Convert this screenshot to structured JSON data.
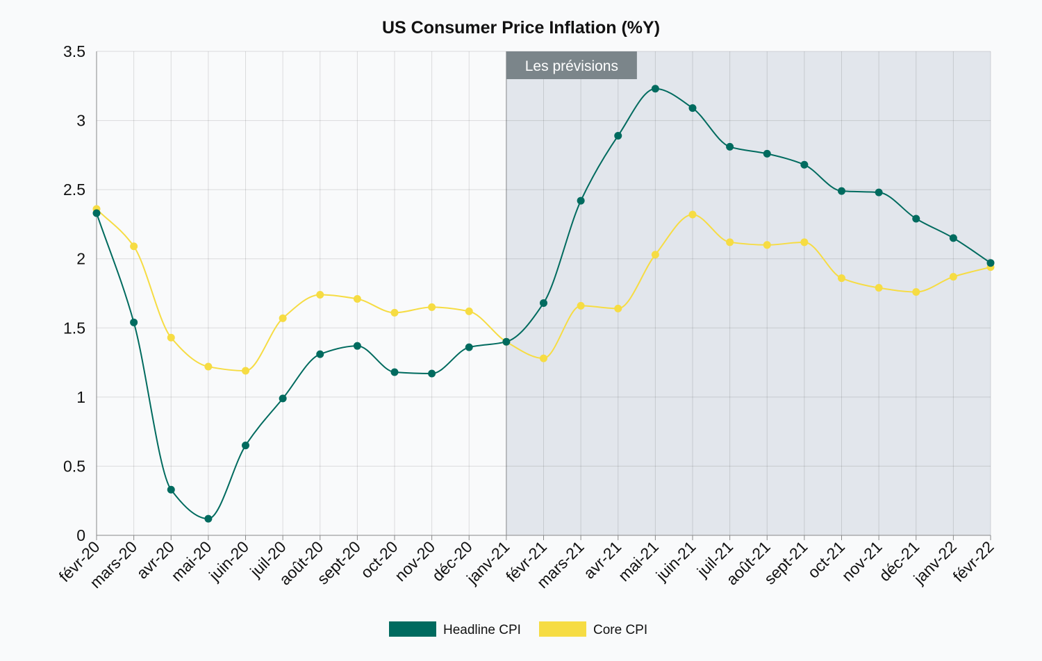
{
  "chart_data": {
    "type": "line",
    "title": "US Consumer Price Inflation (%Y)",
    "xlabel": "",
    "ylabel": "",
    "categories": [
      "févr-20",
      "mars-20",
      "avr-20",
      "mai-20",
      "juin-20",
      "juil-20",
      "août-20",
      "sept-20",
      "oct-20",
      "nov-20",
      "déc-20",
      "janv-21",
      "févr-21",
      "mars-21",
      "avr-21",
      "mai-21",
      "juin-21",
      "juil-21",
      "août-21",
      "sept-21",
      "oct-21",
      "nov-21",
      "déc-21",
      "janv-22",
      "févr-22"
    ],
    "ylim": [
      0,
      3.5
    ],
    "yticks": [
      "0",
      "0.5",
      "1",
      "1.5",
      "2",
      "2.5",
      "3",
      "3.5"
    ],
    "grid": true,
    "legend_position": "bottom",
    "series": [
      {
        "name": "Headline CPI",
        "color": "#006b5f",
        "values": [
          2.33,
          1.54,
          0.33,
          0.12,
          0.65,
          0.99,
          1.31,
          1.37,
          1.18,
          1.17,
          1.36,
          1.4,
          1.68,
          2.42,
          2.89,
          3.23,
          3.09,
          2.81,
          2.76,
          2.68,
          2.49,
          2.48,
          2.29,
          2.15,
          1.97
        ]
      },
      {
        "name": "Core CPI",
        "color": "#f6dc43",
        "values": [
          2.36,
          2.09,
          1.43,
          1.22,
          1.19,
          1.57,
          1.74,
          1.71,
          1.61,
          1.65,
          1.62,
          1.4,
          1.28,
          1.66,
          1.64,
          2.03,
          2.32,
          2.12,
          2.1,
          2.12,
          1.86,
          1.79,
          1.76,
          1.87,
          1.94
        ]
      }
    ],
    "forecast_region": {
      "label": "Les prévisions",
      "start_category": "janv-21",
      "end_category": "févr-22",
      "color": "#e2e6ec",
      "label_bg": "#7b858a"
    }
  }
}
